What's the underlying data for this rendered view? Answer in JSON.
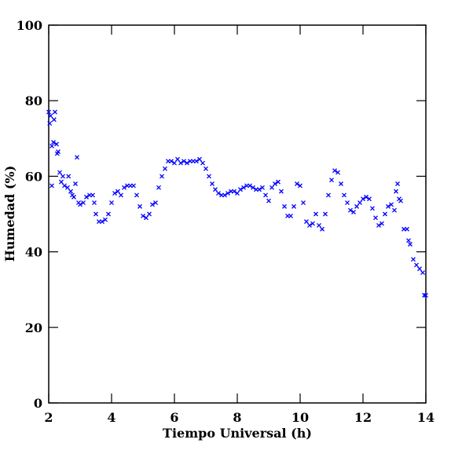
{
  "chart_data": {
    "type": "scatter",
    "xlabel": "Tiempo Universal (h)",
    "ylabel": "Humedad (%)",
    "xlim": [
      2,
      14
    ],
    "ylim": [
      0,
      100
    ],
    "xticks": [
      2,
      4,
      6,
      8,
      10,
      12,
      14
    ],
    "yticks": [
      0,
      20,
      40,
      60,
      80,
      100
    ],
    "color": "#0000ff",
    "marker": "x",
    "x": [
      2.0,
      2.03,
      2.06,
      2.1,
      2.1,
      2.15,
      2.17,
      2.2,
      2.25,
      2.27,
      2.3,
      2.35,
      2.4,
      2.45,
      2.5,
      2.6,
      2.63,
      2.7,
      2.75,
      2.8,
      2.85,
      2.9,
      2.95,
      3.0,
      3.1,
      3.2,
      3.3,
      3.4,
      3.45,
      3.5,
      3.6,
      3.7,
      3.8,
      3.9,
      4.0,
      4.1,
      4.2,
      4.3,
      4.4,
      4.5,
      4.6,
      4.7,
      4.8,
      4.9,
      5.0,
      5.1,
      5.2,
      5.3,
      5.4,
      5.5,
      5.6,
      5.7,
      5.8,
      5.9,
      6.0,
      6.1,
      6.2,
      6.3,
      6.4,
      6.5,
      6.6,
      6.7,
      6.8,
      6.9,
      7.0,
      7.1,
      7.2,
      7.3,
      7.4,
      7.5,
      7.6,
      7.7,
      7.8,
      7.9,
      8.0,
      8.1,
      8.2,
      8.3,
      8.4,
      8.5,
      8.6,
      8.7,
      8.8,
      8.9,
      9.0,
      9.1,
      9.2,
      9.3,
      9.4,
      9.5,
      9.6,
      9.7,
      9.8,
      9.9,
      10.0,
      10.1,
      10.2,
      10.3,
      10.4,
      10.5,
      10.6,
      10.7,
      10.8,
      10.9,
      11.0,
      11.1,
      11.2,
      11.3,
      11.4,
      11.5,
      11.6,
      11.7,
      11.8,
      11.9,
      12.0,
      12.1,
      12.2,
      12.3,
      12.4,
      12.5,
      12.6,
      12.7,
      12.8,
      12.9,
      13.0,
      13.05,
      13.1,
      13.15,
      13.2,
      13.3,
      13.4,
      13.45,
      13.5,
      13.6,
      13.7,
      13.8,
      13.9,
      13.95,
      14.0
    ],
    "values": [
      77,
      74,
      76,
      68,
      57.5,
      69,
      75,
      77,
      68.5,
      66,
      66.5,
      61,
      58.5,
      60,
      57.5,
      57,
      60,
      56,
      55,
      54.5,
      58,
      65,
      53,
      52.5,
      53,
      54.5,
      55,
      55,
      53,
      50,
      48,
      48,
      48.5,
      50,
      53,
      55.5,
      56,
      55,
      57,
      57.5,
      57.5,
      57.5,
      55,
      52,
      49.5,
      49,
      50,
      52.5,
      53,
      57,
      60,
      62,
      64,
      64,
      63.5,
      64.5,
      63.5,
      64,
      63.5,
      64,
      64,
      64,
      64.5,
      63.5,
      62,
      60,
      58,
      56.5,
      55.5,
      55,
      55,
      55.5,
      56,
      56,
      55.5,
      56.5,
      57,
      57.5,
      57.5,
      57,
      56.5,
      56.5,
      57,
      55,
      53.5,
      57,
      58,
      58.5,
      56,
      52,
      49.5,
      49.5,
      52,
      58,
      57.5,
      53,
      48,
      47,
      47.5,
      50,
      47,
      46,
      50,
      55,
      59,
      61.5,
      61,
      58,
      55,
      53,
      51,
      50.5,
      52,
      53,
      54,
      54.5,
      54,
      51.5,
      49,
      47,
      47.5,
      50,
      52,
      52.5,
      51,
      56,
      58,
      54,
      53.5,
      46,
      46,
      43,
      42,
      38,
      36.5,
      35.5,
      34.5,
      28.5,
      28.5
    ]
  }
}
